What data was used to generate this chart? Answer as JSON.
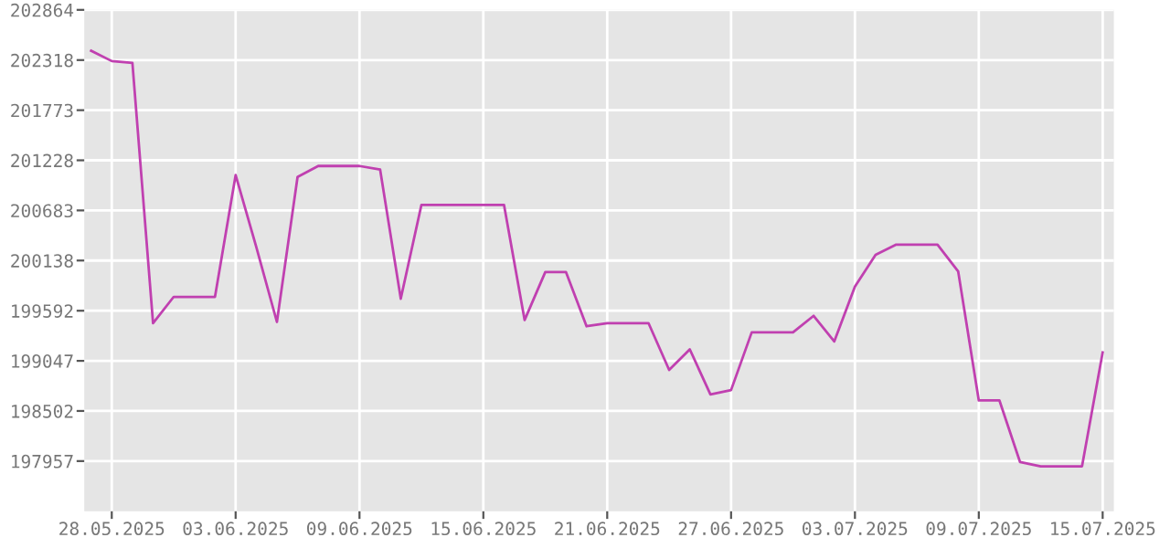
{
  "chart_data": {
    "type": "line",
    "x": [
      "2025-05-27",
      "2025-05-28",
      "2025-05-29",
      "2025-05-30",
      "2025-05-31",
      "2025-06-01",
      "2025-06-02",
      "2025-06-03",
      "2025-06-04",
      "2025-06-05",
      "2025-06-06",
      "2025-06-07",
      "2025-06-08",
      "2025-06-09",
      "2025-06-10",
      "2025-06-11",
      "2025-06-12",
      "2025-06-13",
      "2025-06-14",
      "2025-06-15",
      "2025-06-16",
      "2025-06-17",
      "2025-06-18",
      "2025-06-19",
      "2025-06-20",
      "2025-06-21",
      "2025-06-22",
      "2025-06-23",
      "2025-06-24",
      "2025-06-25",
      "2025-06-26",
      "2025-06-27",
      "2025-06-28",
      "2025-06-29",
      "2025-06-30",
      "2025-07-01",
      "2025-07-02",
      "2025-07-03",
      "2025-07-04",
      "2025-07-05",
      "2025-07-06",
      "2025-07-07",
      "2025-07-08",
      "2025-07-09",
      "2025-07-10",
      "2025-07-11",
      "2025-07-12",
      "2025-07-13",
      "2025-07-14",
      "2025-07-15"
    ],
    "series": [
      {
        "color": "#c040b0",
        "values": [
          202419,
          202307,
          202288,
          199457,
          199743,
          199743,
          199743,
          201067,
          200286,
          199470,
          201047,
          201166,
          201166,
          201166,
          201127,
          199723,
          200743,
          200743,
          200743,
          200743,
          200743,
          199491,
          200013,
          200013,
          199423,
          199457,
          199457,
          199457,
          198948,
          199172,
          198682,
          198729,
          199357,
          199357,
          199357,
          199537,
          199258,
          199854,
          200200,
          200311,
          200311,
          200311,
          200021,
          198616,
          198616,
          197946,
          197900,
          197900,
          197900,
          199138
        ]
      }
    ],
    "xlim": [
      "2025-05-26T16:00",
      "2025-07-15T13:00"
    ],
    "xticks": [
      {
        "value": "2025-05-28",
        "label": "28.05.2025"
      },
      {
        "value": "2025-06-03",
        "label": "03.06.2025"
      },
      {
        "value": "2025-06-09",
        "label": "09.06.2025"
      },
      {
        "value": "2025-06-15",
        "label": "15.06.2025"
      },
      {
        "value": "2025-06-21",
        "label": "21.06.2025"
      },
      {
        "value": "2025-06-27",
        "label": "27.06.2025"
      },
      {
        "value": "2025-07-03",
        "label": "03.07.2025"
      },
      {
        "value": "2025-07-09",
        "label": "09.07.2025"
      },
      {
        "value": "2025-07-15",
        "label": "15.07.2025"
      }
    ],
    "ylim": [
      197411,
      202864
    ],
    "yticks": [
      197957,
      198502,
      199047,
      199592,
      200138,
      200683,
      201228,
      201773,
      202318,
      202864
    ],
    "grid": true,
    "marker": "none",
    "line_style": "solid"
  }
}
